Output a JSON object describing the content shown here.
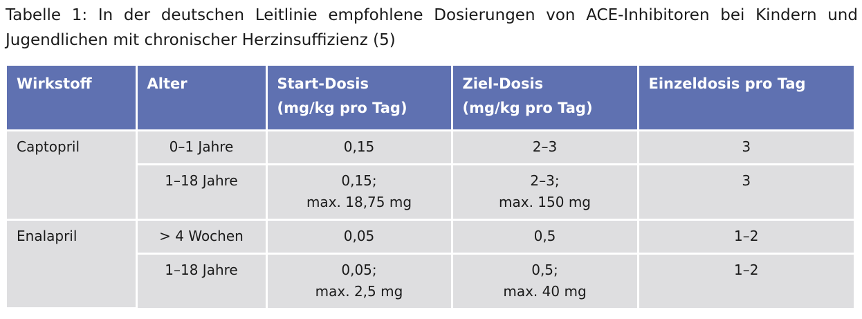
{
  "caption": "Tabelle 1: In der deutschen Leitlinie empfohlene Dosierungen von ACE-Inhibitoren bei Kindern und Jugendlichen mit chronischer Herzinsuffizienz (5)",
  "colors": {
    "header_bg": "#5f71b1",
    "header_text": "#ffffff",
    "cell_bg": "#dedee0",
    "grid_lines": "#ffffff"
  },
  "table": {
    "headers": [
      [
        "Wirkstoff"
      ],
      [
        "Alter"
      ],
      [
        "Start-Dosis",
        "(mg/kg pro Tag)"
      ],
      [
        "Ziel-Dosis",
        "(mg/kg pro Tag)"
      ],
      [
        "Einzeldosis pro Tag"
      ]
    ],
    "rows": [
      {
        "drug": "Captopril",
        "age": "0–1 Jahre",
        "start": [
          "0,15"
        ],
        "target": [
          "2–3"
        ],
        "single": "3"
      },
      {
        "drug": "",
        "age": "1–18 Jahre",
        "start": [
          "0,15;",
          "max. 18,75 mg"
        ],
        "target": [
          "2–3;",
          "max. 150 mg"
        ],
        "single": "3"
      },
      {
        "drug": "Enalapril",
        "age": "> 4 Wochen",
        "start": [
          "0,05"
        ],
        "target": [
          "0,5"
        ],
        "single": "1–2"
      },
      {
        "drug": "",
        "age": "1–18 Jahre",
        "start": [
          "0,05;",
          "max. 2,5 mg"
        ],
        "target": [
          "0,5;",
          "max. 40 mg"
        ],
        "single": "1–2"
      }
    ]
  }
}
